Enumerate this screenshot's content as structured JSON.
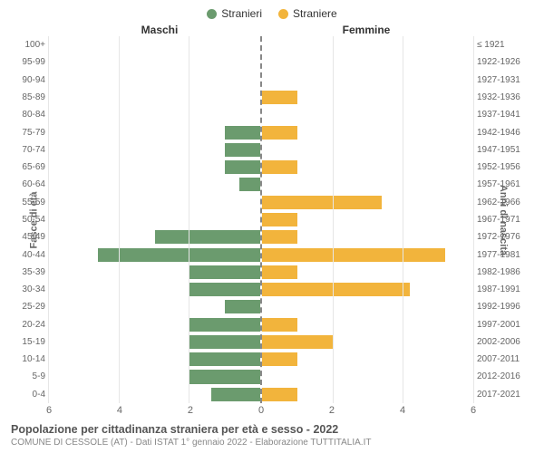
{
  "legend": {
    "male": {
      "label": "Stranieri",
      "color": "#6b9b6e"
    },
    "female": {
      "label": "Straniere",
      "color": "#f2b43c"
    }
  },
  "headers": {
    "male": "Maschi",
    "female": "Femmine"
  },
  "axis_titles": {
    "left": "Fasce di età",
    "right": "Anni di nascita"
  },
  "x": {
    "min": 0,
    "max": 6,
    "ticks": [
      0,
      2,
      4,
      6
    ]
  },
  "style": {
    "bg": "#ffffff",
    "grid_color": "#e6e6e6",
    "center_line": "#888888",
    "bar_height_pct": 78,
    "font_small": 10,
    "font_normal": 12
  },
  "rows": [
    {
      "age": "100+",
      "birth": "≤ 1921",
      "m": 0,
      "f": 0
    },
    {
      "age": "95-99",
      "birth": "1922-1926",
      "m": 0,
      "f": 0
    },
    {
      "age": "90-94",
      "birth": "1927-1931",
      "m": 0,
      "f": 0
    },
    {
      "age": "85-89",
      "birth": "1932-1936",
      "m": 0,
      "f": 1
    },
    {
      "age": "80-84",
      "birth": "1937-1941",
      "m": 0,
      "f": 0
    },
    {
      "age": "75-79",
      "birth": "1942-1946",
      "m": 1,
      "f": 1
    },
    {
      "age": "70-74",
      "birth": "1947-1951",
      "m": 1,
      "f": 0
    },
    {
      "age": "65-69",
      "birth": "1952-1956",
      "m": 1,
      "f": 1
    },
    {
      "age": "60-64",
      "birth": "1957-1961",
      "m": 0.6,
      "f": 0
    },
    {
      "age": "55-59",
      "birth": "1962-1966",
      "m": 0,
      "f": 3.4
    },
    {
      "age": "50-54",
      "birth": "1967-1971",
      "m": 0,
      "f": 1
    },
    {
      "age": "45-49",
      "birth": "1972-1976",
      "m": 3,
      "f": 1
    },
    {
      "age": "40-44",
      "birth": "1977-1981",
      "m": 4.6,
      "f": 5.2
    },
    {
      "age": "35-39",
      "birth": "1982-1986",
      "m": 2,
      "f": 1
    },
    {
      "age": "30-34",
      "birth": "1987-1991",
      "m": 2,
      "f": 4.2
    },
    {
      "age": "25-29",
      "birth": "1992-1996",
      "m": 1,
      "f": 0
    },
    {
      "age": "20-24",
      "birth": "1997-2001",
      "m": 2,
      "f": 1
    },
    {
      "age": "15-19",
      "birth": "2002-2006",
      "m": 2,
      "f": 2
    },
    {
      "age": "10-14",
      "birth": "2007-2011",
      "m": 2,
      "f": 1
    },
    {
      "age": "5-9",
      "birth": "2012-2016",
      "m": 2,
      "f": 0
    },
    {
      "age": "0-4",
      "birth": "2017-2021",
      "m": 1.4,
      "f": 1
    }
  ],
  "footer": {
    "title": "Popolazione per cittadinanza straniera per età e sesso - 2022",
    "subtitle": "COMUNE DI CESSOLE (AT) - Dati ISTAT 1° gennaio 2022 - Elaborazione TUTTITALIA.IT"
  }
}
